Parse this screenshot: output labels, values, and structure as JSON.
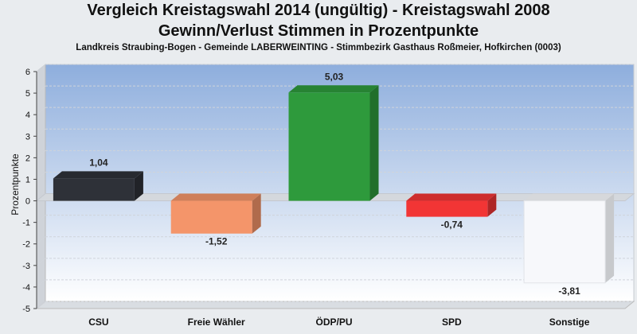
{
  "title_line1": "Vergleich Kreistagswahl 2014 (ungültig) - Kreistagswahl 2008",
  "title_line2": "Gewinn/Verlust Stimmen in Prozentpunkte",
  "subtitle": "Landkreis Straubing-Bogen - Gemeinde LABERWEINTING - Stimmbezirk Gasthaus Roßmeier, Hofkirchen (0003)",
  "chart_data": {
    "type": "bar",
    "title": "Vergleich Kreistagswahl 2014 (ungültig) - Kreistagswahl 2008",
    "subtitle": "Gewinn/Verlust Stimmen in Prozentpunkte",
    "ylabel": "Prozentpunkte",
    "ylim": [
      -5,
      6
    ],
    "yticks": [
      6,
      5,
      4,
      3,
      2,
      1,
      0,
      -1,
      -2,
      -3,
      -4,
      -5
    ],
    "categories": [
      "CSU",
      "Freie Wähler",
      "ÖDP/PU",
      "SPD",
      "Sonstige"
    ],
    "values": [
      1.04,
      -1.52,
      5.03,
      -0.74,
      -3.81
    ],
    "value_labels": [
      "1,04",
      "-1,52",
      "5,03",
      "-0,74",
      "-3,81"
    ],
    "colors": [
      "#2e3138",
      "#f4956a",
      "#2e9a3c",
      "#f23535",
      "#f7f8fb"
    ],
    "grid": true,
    "style": "3d"
  }
}
